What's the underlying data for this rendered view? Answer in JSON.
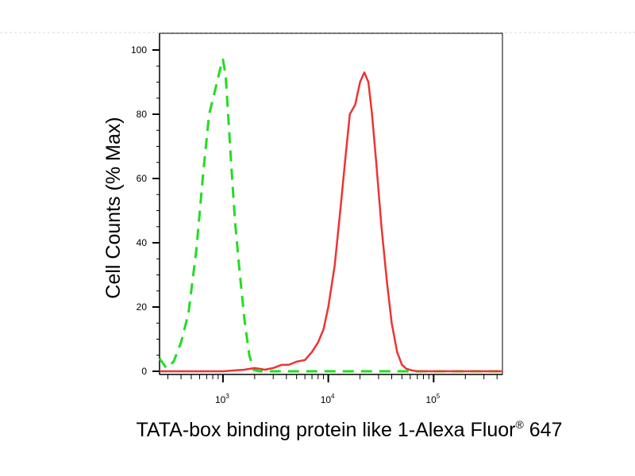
{
  "chart_data": {
    "type": "line",
    "title": "",
    "xlabel": "TATA-box binding protein like 1-Alexa Fluor",
    "xlabel_registered_mark": "®",
    "xlabel_suffix": " 647",
    "ylabel": "Cell Counts (% Max)",
    "xscale": "log",
    "xlim": [
      250,
      450000
    ],
    "ylim": [
      0,
      100
    ],
    "y_ticks": [
      0,
      20,
      40,
      60,
      80,
      100
    ],
    "x_ticks": [
      {
        "value": 1000,
        "base": "10",
        "exp": "3"
      },
      {
        "value": 10000,
        "base": "10",
        "exp": "4"
      },
      {
        "value": 100000,
        "base": "10",
        "exp": "5"
      }
    ],
    "grid": false,
    "legend": "none",
    "series": [
      {
        "color": "#22dd22",
        "line_style": "dashed",
        "x": [
          250,
          290,
          340,
          400,
          470,
          560,
          650,
          740,
          820,
          880,
          940,
          1000,
          1060,
          1120,
          1200,
          1300,
          1430,
          1600,
          1780,
          1950,
          2200,
          2600,
          3500,
          6000,
          10000,
          20000,
          50000,
          100000,
          200000,
          450000
        ],
        "y": [
          4,
          1,
          3,
          9,
          18,
          38,
          62,
          80,
          86,
          90,
          94,
          97,
          92,
          80,
          64,
          47,
          32,
          16,
          5,
          0.5,
          0,
          0,
          0,
          0,
          0,
          0,
          0,
          0,
          0,
          0
        ]
      },
      {
        "color": "#ee3333",
        "line_style": "solid",
        "x": [
          250,
          1000,
          1600,
          2000,
          2500,
          3000,
          3600,
          4200,
          5000,
          6000,
          7000,
          8000,
          9000,
          10000,
          11500,
          13000,
          14500,
          16000,
          18000,
          20000,
          22000,
          24000,
          26000,
          28500,
          32000,
          36000,
          40000,
          45000,
          50000,
          55000,
          62000,
          70000,
          90000,
          150000,
          450000
        ],
        "y": [
          0,
          0,
          0.5,
          1,
          0.5,
          1,
          2,
          2,
          3,
          3.5,
          6,
          9,
          13,
          20,
          33,
          50,
          66,
          80,
          83,
          90,
          93,
          90,
          80,
          65,
          45,
          28,
          15,
          6,
          2,
          0.8,
          0.3,
          0,
          0,
          0,
          0
        ]
      }
    ]
  }
}
